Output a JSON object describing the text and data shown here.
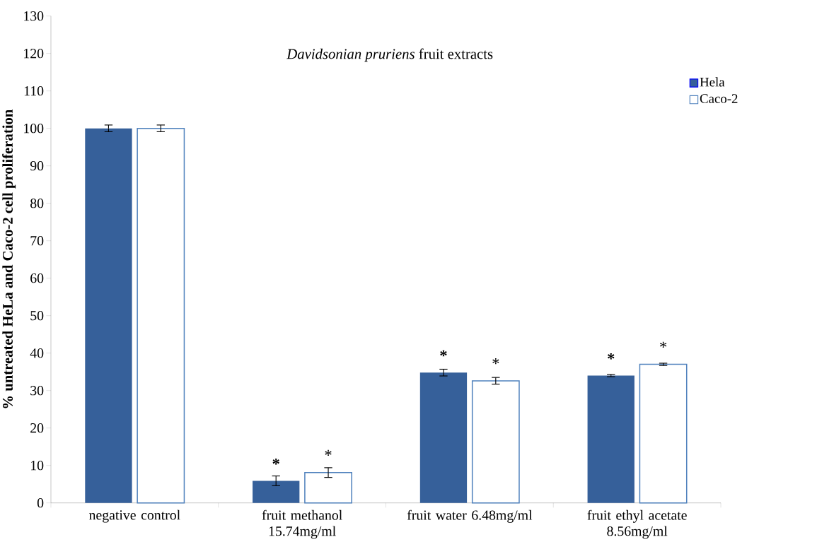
{
  "chart_data": {
    "type": "bar",
    "title": "*Davidsonian pruriens* fruit extracts",
    "ylabel": "% untreated HeLa and Caco-2  cell proliferation",
    "categories": [
      "negative control",
      "fruit methanol 15.74mg/ml",
      "fruit water 6.48mg/ml",
      "fruit ethyl acetate 8.56mg/ml"
    ],
    "series": [
      {
        "name": "Hela",
        "color": "#36609a",
        "values": [
          100,
          5.9,
          34.8,
          34.0
        ],
        "errors": [
          0.9,
          1.3,
          0.9,
          0.3
        ],
        "value_labels": [
          null,
          "*",
          "*",
          "*"
        ]
      },
      {
        "name": "Caco-2",
        "color": "#ffffff",
        "values": [
          100,
          8.1,
          32.6,
          37.0
        ],
        "errors": [
          0.9,
          1.3,
          0.9,
          0.3
        ],
        "value_labels": [
          null,
          "*",
          "*",
          "*"
        ]
      }
    ],
    "ylim": [
      0,
      130
    ],
    "yticks": [
      0,
      10,
      20,
      30,
      40,
      50,
      60,
      70,
      80,
      90,
      100,
      110,
      120,
      130
    ],
    "legend": "right",
    "grid": false
  }
}
